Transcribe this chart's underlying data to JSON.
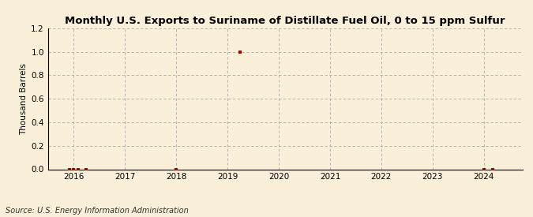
{
  "title": "Monthly U.S. Exports to Suriname of Distillate Fuel Oil, 0 to 15 ppm Sulfur",
  "ylabel": "Thousand Barrels",
  "source": "Source: U.S. Energy Information Administration",
  "background_color": "#faefd8",
  "plot_bg_color": "#faefd8",
  "data_points": [
    {
      "date": 2015.917,
      "value": 0.0
    },
    {
      "date": 2016.0,
      "value": 0.0
    },
    {
      "date": 2016.083,
      "value": 0.0
    },
    {
      "date": 2016.25,
      "value": 0.0
    },
    {
      "date": 2018.0,
      "value": 0.0
    },
    {
      "date": 2019.25,
      "value": 1.0
    },
    {
      "date": 2024.0,
      "value": 0.0
    },
    {
      "date": 2024.167,
      "value": 0.0
    }
  ],
  "xlim": [
    2015.5,
    2024.75
  ],
  "ylim": [
    0.0,
    1.2
  ],
  "yticks": [
    0.0,
    0.2,
    0.4,
    0.6,
    0.8,
    1.0,
    1.2
  ],
  "xticks": [
    2016,
    2017,
    2018,
    2019,
    2020,
    2021,
    2022,
    2023,
    2024
  ],
  "marker_color": "#aa0000",
  "marker_size": 3,
  "grid_color": "#aaaaaa",
  "grid_linestyle": "--",
  "axis_color": "#000000",
  "title_fontsize": 9.5,
  "label_fontsize": 7.5,
  "tick_fontsize": 7.5,
  "source_fontsize": 7
}
